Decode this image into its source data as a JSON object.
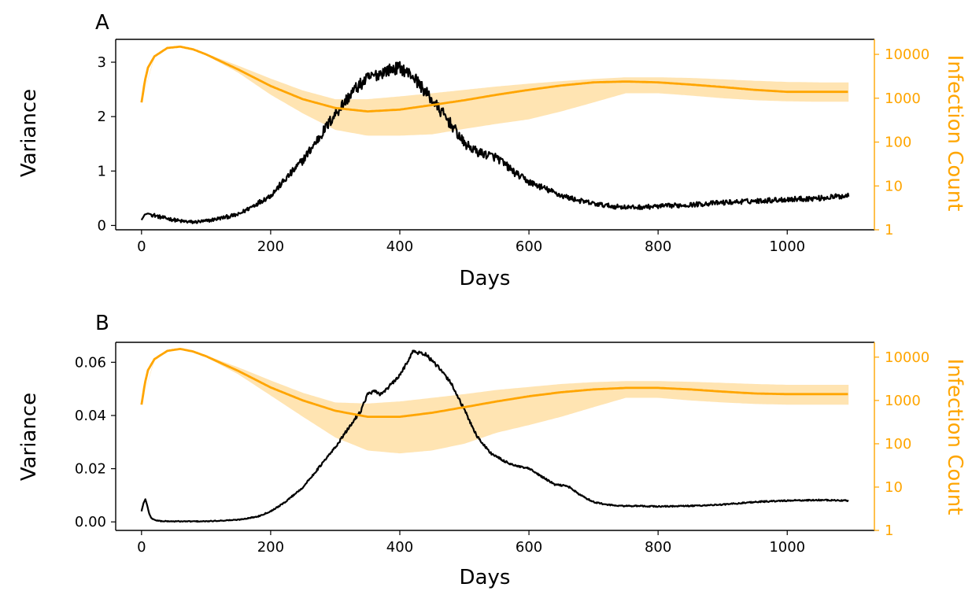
{
  "chart_data": [
    {
      "panel": "A",
      "type": "line",
      "xlabel": "Days",
      "ylabel": "Variance",
      "y2label": "Infection Count",
      "xlim": [
        -40,
        1135
      ],
      "ylim": [
        -0.08,
        3.42
      ],
      "y2scale": "log",
      "y2lim": [
        1,
        22000
      ],
      "xticks": [
        0,
        200,
        400,
        600,
        800,
        1000
      ],
      "yticks": [
        0,
        1,
        2,
        3
      ],
      "y2ticks": [
        1,
        10,
        100,
        1000,
        10000
      ],
      "colors": {
        "variance": "#000000",
        "infection": "#ffa500",
        "band": "#ffa500",
        "right_axis": "#ffa500"
      },
      "noise": 0.07,
      "variance": {
        "x": [
          0,
          5,
          10,
          30,
          60,
          80,
          100,
          150,
          200,
          250,
          280,
          300,
          330,
          350,
          380,
          400,
          420,
          450,
          480,
          500,
          520,
          550,
          580,
          600,
          620,
          650,
          680,
          700,
          730,
          760,
          800,
          850,
          900,
          950,
          1000,
          1050,
          1095
        ],
        "y": [
          0.1,
          0.2,
          0.22,
          0.15,
          0.08,
          0.06,
          0.08,
          0.2,
          0.55,
          1.2,
          1.7,
          2.05,
          2.5,
          2.7,
          2.85,
          2.9,
          2.75,
          2.3,
          1.85,
          1.5,
          1.35,
          1.25,
          0.95,
          0.8,
          0.7,
          0.55,
          0.45,
          0.4,
          0.35,
          0.33,
          0.35,
          0.38,
          0.42,
          0.45,
          0.48,
          0.5,
          0.55
        ]
      },
      "infection_mean": {
        "x": [
          0,
          5,
          10,
          20,
          40,
          60,
          80,
          100,
          150,
          200,
          250,
          300,
          350,
          400,
          450,
          500,
          550,
          600,
          650,
          700,
          750,
          800,
          850,
          900,
          950,
          1000,
          1050,
          1095
        ],
        "y": [
          800,
          2400,
          5000,
          9000,
          14000,
          15000,
          13000,
          10000,
          4500,
          1900,
          950,
          600,
          500,
          550,
          700,
          900,
          1200,
          1550,
          1950,
          2300,
          2400,
          2300,
          2050,
          1800,
          1550,
          1400,
          1400,
          1400
        ]
      },
      "infection_band": {
        "x": [
          0,
          20,
          40,
          60,
          80,
          100,
          150,
          200,
          250,
          300,
          350,
          400,
          450,
          500,
          550,
          600,
          650,
          700,
          750,
          800,
          850,
          900,
          950,
          1000,
          1050,
          1095
        ],
        "upper": [
          800,
          9500,
          14500,
          15500,
          13500,
          10500,
          5500,
          2800,
          1500,
          950,
          950,
          1100,
          1300,
          1550,
          1850,
          2150,
          2450,
          2750,
          3000,
          3000,
          2900,
          2700,
          2500,
          2350,
          2300,
          2300
        ],
        "lower": [
          800,
          8500,
          13500,
          14500,
          12500,
          9500,
          3800,
          1200,
          450,
          190,
          140,
          140,
          150,
          200,
          260,
          330,
          500,
          800,
          1300,
          1300,
          1150,
          1000,
          900,
          850,
          830,
          830
        ]
      }
    },
    {
      "panel": "B",
      "type": "line",
      "xlabel": "Days",
      "ylabel": "Variance",
      "y2label": "Infection Count",
      "xlim": [
        -40,
        1135
      ],
      "ylim": [
        -0.0032,
        0.0675
      ],
      "y2scale": "log",
      "y2lim": [
        1,
        22000
      ],
      "xticks": [
        0,
        200,
        400,
        600,
        800,
        1000
      ],
      "yticks": [
        0.0,
        0.02,
        0.04,
        0.06
      ],
      "ytick_labels": [
        "0.00",
        "0.02",
        "0.04",
        "0.06"
      ],
      "y2ticks": [
        1,
        10,
        100,
        1000,
        10000
      ],
      "colors": {
        "variance": "#000000",
        "infection": "#ffa500",
        "band": "#ffa500",
        "right_axis": "#ffa500"
      },
      "noise": 0.0004,
      "variance": {
        "x": [
          0,
          3,
          6,
          9,
          12,
          15,
          20,
          30,
          50,
          100,
          150,
          180,
          200,
          220,
          250,
          280,
          300,
          320,
          340,
          350,
          360,
          370,
          380,
          400,
          420,
          440,
          460,
          480,
          500,
          520,
          540,
          560,
          580,
          600,
          620,
          640,
          660,
          680,
          700,
          720,
          740,
          760,
          800,
          850,
          900,
          950,
          1000,
          1050,
          1095
        ],
        "y": [
          0.004,
          0.007,
          0.0085,
          0.006,
          0.003,
          0.0015,
          0.0007,
          0.0003,
          0.0002,
          0.0002,
          0.0008,
          0.002,
          0.004,
          0.007,
          0.013,
          0.022,
          0.028,
          0.035,
          0.042,
          0.048,
          0.049,
          0.048,
          0.05,
          0.055,
          0.064,
          0.063,
          0.058,
          0.052,
          0.042,
          0.032,
          0.026,
          0.023,
          0.021,
          0.02,
          0.017,
          0.014,
          0.0135,
          0.01,
          0.0075,
          0.0065,
          0.006,
          0.006,
          0.0058,
          0.006,
          0.0065,
          0.0075,
          0.008,
          0.0082,
          0.008
        ]
      },
      "infection_mean": {
        "x": [
          0,
          5,
          10,
          20,
          40,
          60,
          80,
          100,
          150,
          200,
          250,
          300,
          350,
          400,
          450,
          500,
          550,
          600,
          650,
          700,
          750,
          800,
          850,
          900,
          950,
          1000,
          1050,
          1095
        ],
        "y": [
          800,
          2400,
          5000,
          9000,
          14000,
          15500,
          13500,
          10500,
          4800,
          2000,
          1000,
          580,
          420,
          420,
          520,
          700,
          950,
          1250,
          1550,
          1800,
          1950,
          1950,
          1800,
          1600,
          1450,
          1400,
          1400,
          1400
        ]
      },
      "infection_band": {
        "x": [
          0,
          20,
          40,
          60,
          80,
          100,
          150,
          200,
          250,
          300,
          350,
          400,
          450,
          500,
          550,
          600,
          650,
          700,
          750,
          800,
          850,
          900,
          950,
          1000,
          1050,
          1095
        ],
        "upper": [
          800,
          9500,
          14500,
          16000,
          14000,
          11000,
          5800,
          2900,
          1500,
          900,
          850,
          950,
          1150,
          1400,
          1750,
          2050,
          2400,
          2650,
          2800,
          2800,
          2700,
          2550,
          2400,
          2300,
          2300,
          2300
        ],
        "lower": [
          800,
          8500,
          13500,
          15000,
          13000,
          10000,
          4000,
          1300,
          420,
          140,
          70,
          60,
          70,
          100,
          180,
          270,
          420,
          700,
          1150,
          1150,
          1000,
          900,
          830,
          800,
          800,
          800
        ]
      }
    }
  ],
  "panels": [
    {
      "letter": "A",
      "xlabel": "Days",
      "ylabel": "Variance",
      "y2label": "Infection Count"
    },
    {
      "letter": "B",
      "xlabel": "Days",
      "ylabel": "Variance",
      "y2label": "Infection Count"
    }
  ]
}
